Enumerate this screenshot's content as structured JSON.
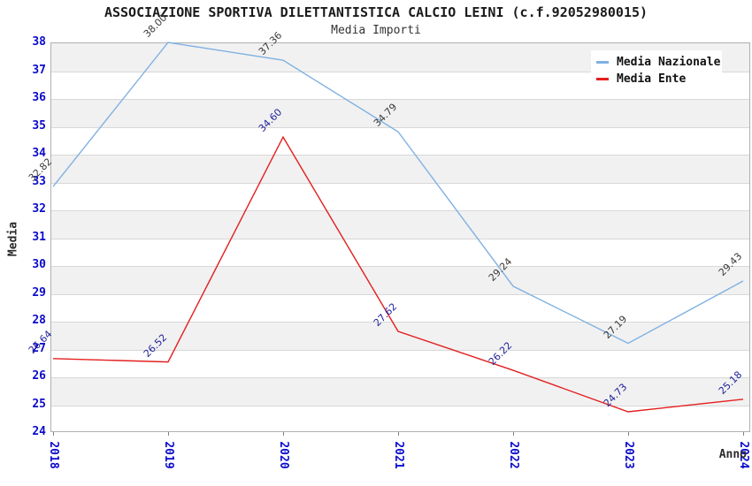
{
  "header": {
    "title": "ASSOCIAZIONE SPORTIVA DILETTANTISTICA CALCIO LEINI (c.f.92052980015)",
    "subtitle": "Media Importi"
  },
  "legend": {
    "items": [
      {
        "label": "Media Nazionale",
        "color": "#7fb1e2"
      },
      {
        "label": "Media Ente",
        "color": "#e41f1f"
      }
    ]
  },
  "chart_data": {
    "type": "line",
    "x": [
      "2018",
      "2019",
      "2020",
      "2021",
      "2022",
      "2023",
      "2024"
    ],
    "series": [
      {
        "name": "Media Nazionale",
        "color": "#7fb1e2",
        "label_color": "#3a3a3a",
        "values": [
          32.82,
          38.0,
          37.36,
          34.79,
          29.24,
          27.19,
          29.43
        ]
      },
      {
        "name": "Media Ente",
        "color": "#e41f1f",
        "label_color": "#22229a",
        "values": [
          26.64,
          26.52,
          34.6,
          27.62,
          26.22,
          24.73,
          25.18
        ]
      }
    ],
    "xlabel": "Anno",
    "ylabel": "Media",
    "ylim": [
      24,
      38
    ],
    "ytick_step": 1,
    "y_ticks": [
      "38",
      "37",
      "36",
      "35",
      "34",
      "33",
      "32",
      "31",
      "30",
      "29",
      "28",
      "27",
      "26",
      "25",
      "24"
    ],
    "value_label_format": "2-decimals",
    "legend_position": "top-right",
    "grid": "horizontal-alternating-bands",
    "band_color": "#f1f1f1",
    "grid_color": "#d8d8d8",
    "tick_label_color": "#0b0bcc"
  }
}
